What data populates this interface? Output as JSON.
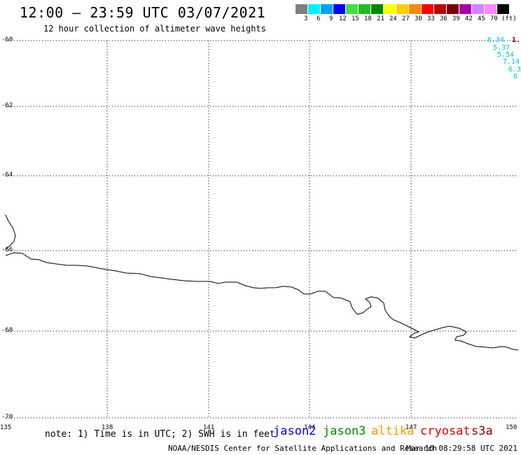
{
  "header": {
    "title": "12:00 – 23:59 UTC 03/07/2021",
    "subtitle": "12 hour collection of altimeter wave heights"
  },
  "legend": {
    "colors": [
      "#7f7f7f",
      "#00f0ff",
      "#00a2ff",
      "#0000ff",
      "#44dd44",
      "#22bb22",
      "#008800",
      "#ffff00",
      "#ffcc00",
      "#ff8800",
      "#ff0000",
      "#bb0000",
      "#770000",
      "#aa00aa",
      "#cc88ff",
      "#ff88ff",
      "#000000"
    ],
    "labels": [
      "3",
      "6",
      "9",
      "12",
      "15",
      "18",
      "21",
      "24",
      "27",
      "30",
      "33",
      "36",
      "39",
      "42",
      "45",
      "70",
      "(ft)"
    ]
  },
  "map": {
    "lat_labels": [
      "-60",
      "-62",
      "-64",
      "-66",
      "-68",
      "-70"
    ],
    "lon_labels": [
      "135",
      "138",
      "141",
      "144",
      "147",
      "150"
    ],
    "wave_values": [
      "6.34",
      "5.37",
      "5.54",
      "7.14",
      "6.3",
      "6"
    ],
    "wave_value_partial": "1."
  },
  "footer": {
    "note": "note: 1) Time is in UTC; 2) SWH is in feet",
    "satellites": [
      {
        "name": "jason2",
        "color": "#0000dd"
      },
      {
        "name": "jason3",
        "color": "#008800"
      },
      {
        "name": "altika",
        "color": "#ff9900"
      },
      {
        "name": "cryosat",
        "color": "#dd0000"
      },
      {
        "name": "s3a",
        "color": "#880000"
      }
    ],
    "credit": "NOAA/NESDIS Center for Satellite Applications and Research",
    "timestamp": "Mar 10 08:29:58 UTC 2021"
  }
}
